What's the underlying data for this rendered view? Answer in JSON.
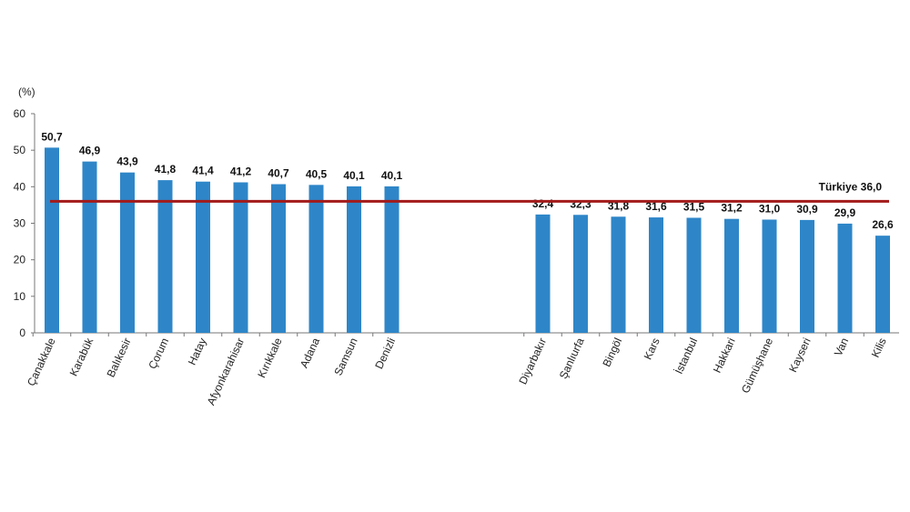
{
  "chart_data": {
    "type": "bar",
    "unit_label": "(%)",
    "ylim": [
      0,
      60
    ],
    "yticks": [
      "0",
      "10",
      "20",
      "30",
      "40",
      "50",
      "60"
    ],
    "grid": false,
    "bar_color": "#2e86c8",
    "reference_color": "#a31a1a",
    "reference": {
      "label": "Türkiye  36,0",
      "value": 36.0
    },
    "groups": [
      {
        "categories": [
          "Çanakkale",
          "Karabük",
          "Balıkesir",
          "Çorum",
          "Hatay",
          "Afyonkarahisar",
          "Kırıkkale",
          "Adana",
          "Samsun",
          "Denizli"
        ],
        "values": [
          50.7,
          46.9,
          43.9,
          41.8,
          41.4,
          41.2,
          40.7,
          40.5,
          40.1,
          40.1
        ],
        "labels": [
          "50,7",
          "46,9",
          "43,9",
          "41,8",
          "41,4",
          "41,2",
          "40,7",
          "40,5",
          "40,1",
          "40,1"
        ]
      },
      {
        "categories": [
          "Diyarbakır",
          "Şanlıurfa",
          "Bingöl",
          "Kars",
          "İstanbul",
          "Hakkari",
          "Gümüşhane",
          "Kayseri",
          "Van",
          "Kilis"
        ],
        "values": [
          32.4,
          32.3,
          31.8,
          31.6,
          31.5,
          31.2,
          31.0,
          30.9,
          29.9,
          26.6
        ],
        "labels": [
          "32,4",
          "32,3",
          "31,8",
          "31,6",
          "31,5",
          "31,2",
          "31,0",
          "30,9",
          "29,9",
          "26,6"
        ]
      }
    ]
  }
}
